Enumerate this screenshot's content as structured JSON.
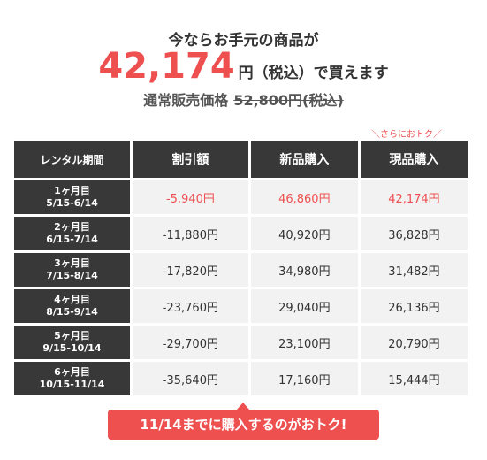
{
  "header": {
    "lead": "今ならお手元の商品が",
    "price": "42,174",
    "price_suffix": "円（税込）で買えます",
    "regular_label": "通常販売価格",
    "regular_price": "52,800円(税込)"
  },
  "bonus_note": "＼さらにおトク／",
  "table": {
    "headers": [
      "レンタル期間",
      "割引額",
      "新品購入",
      "現品購入"
    ],
    "rows": [
      {
        "month": "1ヶ月目",
        "range": "5/15-6/14",
        "discount": "-5,940円",
        "new": "46,860円",
        "current": "42,174円"
      },
      {
        "month": "2ヶ月目",
        "range": "6/15-7/14",
        "discount": "-11,880円",
        "new": "40,920円",
        "current": "36,828円"
      },
      {
        "month": "3ヶ月目",
        "range": "7/15-8/14",
        "discount": "-17,820円",
        "new": "34,980円",
        "current": "31,482円"
      },
      {
        "month": "4ヶ月目",
        "range": "8/15-9/14",
        "discount": "-23,760円",
        "new": "29,040円",
        "current": "26,136円"
      },
      {
        "month": "5ヶ月目",
        "range": "9/15-10/14",
        "discount": "-29,700円",
        "new": "23,100円",
        "current": "20,790円"
      },
      {
        "month": "6ヶ月目",
        "range": "10/15-11/14",
        "discount": "-35,640円",
        "new": "17,160円",
        "current": "15,444円"
      }
    ]
  },
  "banner": "11/14までに購入するのがおトク!",
  "colors": {
    "accent": "#ee5050",
    "dark_cell": "#383838",
    "light_cell": "#f2f2f2"
  }
}
